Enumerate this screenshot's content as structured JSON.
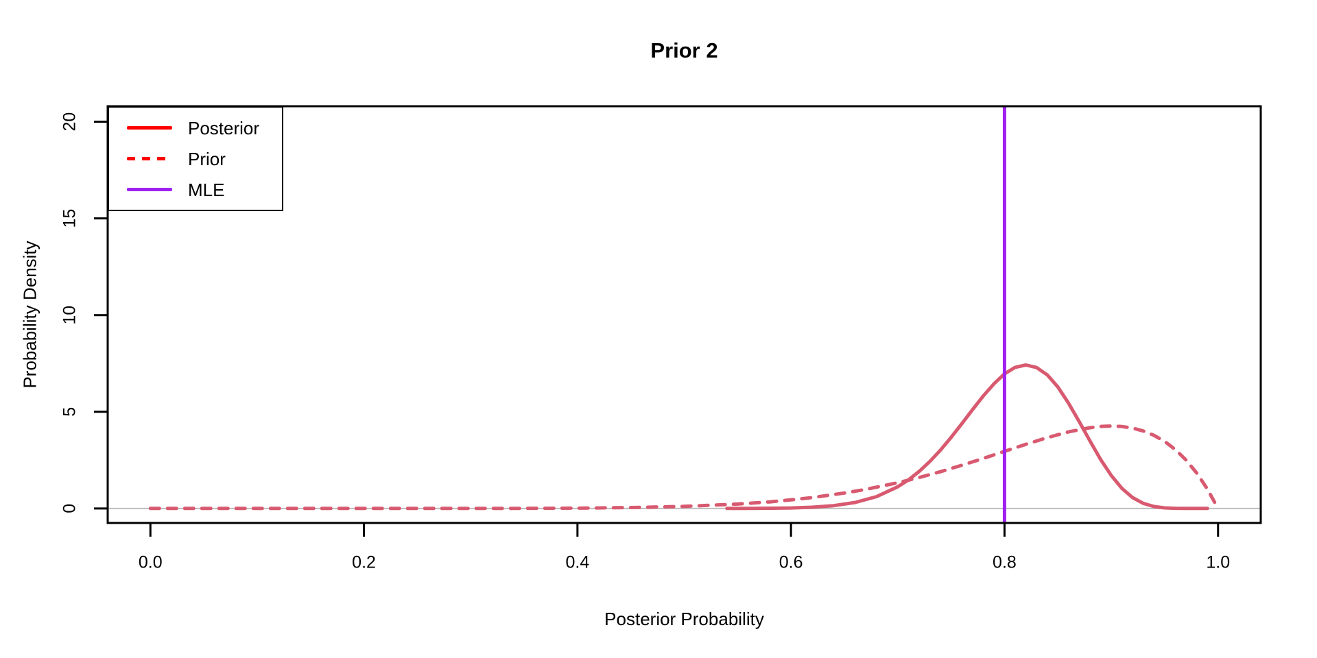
{
  "title": {
    "text": "Prior 2"
  },
  "axes": {
    "x": {
      "label": "Posterior Probability",
      "ticks": [
        {
          "value": 0.0,
          "label": "0.0"
        },
        {
          "value": 0.2,
          "label": "0.2"
        },
        {
          "value": 0.4,
          "label": "0.4"
        },
        {
          "value": 0.6,
          "label": "0.6"
        },
        {
          "value": 0.8,
          "label": "0.8"
        },
        {
          "value": 1.0,
          "label": "1.0"
        }
      ]
    },
    "y": {
      "label": "Probability Density",
      "ticks": [
        {
          "value": 0,
          "label": "0"
        },
        {
          "value": 5,
          "label": "5"
        },
        {
          "value": 10,
          "label": "10"
        },
        {
          "value": 15,
          "label": "15"
        },
        {
          "value": 20,
          "label": "20"
        }
      ]
    }
  },
  "legend": {
    "items": [
      {
        "label": "Posterior",
        "color": "#FF0000",
        "line": "solid"
      },
      {
        "label": "Prior",
        "color": "#FF0000",
        "line": "dashed"
      },
      {
        "label": "MLE",
        "color": "#A021F0",
        "line": "solid"
      }
    ]
  },
  "colors": {
    "curve": "#D85A70",
    "mle_line": "#A021F0",
    "zero_line": "#BEBEBE",
    "axis": "#000000",
    "background": "#FFFFFF"
  },
  "chart_data": {
    "type": "line",
    "title": "Prior 2",
    "xlabel": "Posterior Probability",
    "ylabel": "Probability Density",
    "xlim": [
      -0.04,
      1.04
    ],
    "ylim": [
      -0.75,
      20.8
    ],
    "x_ticks": [
      0,
      0.2,
      0.4,
      0.6,
      0.8,
      1.0
    ],
    "y_ticks": [
      0,
      5,
      10,
      15,
      20
    ],
    "grid": false,
    "legend_position": "topleft",
    "zero_line": {
      "y": 0,
      "color": "#BEBEBE"
    },
    "series": [
      {
        "name": "Posterior",
        "type": "line",
        "style": "solid",
        "color": "#D85A70",
        "points": [
          [
            0.54,
            0.002
          ],
          [
            0.56,
            0.005
          ],
          [
            0.58,
            0.011
          ],
          [
            0.6,
            0.027
          ],
          [
            0.62,
            0.065
          ],
          [
            0.64,
            0.147
          ],
          [
            0.66,
            0.31
          ],
          [
            0.68,
            0.61
          ],
          [
            0.7,
            1.12
          ],
          [
            0.71,
            1.478
          ],
          [
            0.72,
            1.913
          ],
          [
            0.73,
            2.428
          ],
          [
            0.74,
            3.019
          ],
          [
            0.75,
            3.677
          ],
          [
            0.76,
            4.384
          ],
          [
            0.77,
            5.109
          ],
          [
            0.78,
            5.812
          ],
          [
            0.79,
            6.44
          ],
          [
            0.8,
            6.959
          ],
          [
            0.81,
            7.3
          ],
          [
            0.82,
            7.42
          ],
          [
            0.83,
            7.29
          ],
          [
            0.84,
            6.91
          ],
          [
            0.85,
            6.28
          ],
          [
            0.86,
            5.447
          ],
          [
            0.87,
            4.49
          ],
          [
            0.88,
            3.494
          ],
          [
            0.89,
            2.537
          ],
          [
            0.9,
            1.701
          ],
          [
            0.91,
            1.036
          ],
          [
            0.92,
            0.562
          ],
          [
            0.93,
            0.264
          ],
          [
            0.94,
            0.102
          ],
          [
            0.95,
            0.031
          ],
          [
            0.96,
            0.01
          ],
          [
            0.97,
            0.004
          ],
          [
            0.98,
            0.001
          ],
          [
            0.99,
            0.001
          ]
        ]
      },
      {
        "name": "Prior",
        "type": "line",
        "style": "dashed",
        "color": "#D85A70",
        "points": [
          [
            0.0,
            0.001
          ],
          [
            0.05,
            0.001
          ],
          [
            0.1,
            0.001
          ],
          [
            0.15,
            0.001
          ],
          [
            0.2,
            0.001
          ],
          [
            0.25,
            0.001
          ],
          [
            0.3,
            0.002
          ],
          [
            0.35,
            0.006
          ],
          [
            0.4,
            0.017
          ],
          [
            0.45,
            0.046
          ],
          [
            0.5,
            0.107
          ],
          [
            0.55,
            0.228
          ],
          [
            0.58,
            0.343
          ],
          [
            0.6,
            0.443
          ],
          [
            0.62,
            0.565
          ],
          [
            0.65,
            0.798
          ],
          [
            0.67,
            0.987
          ],
          [
            0.7,
            1.332
          ],
          [
            0.72,
            1.601
          ],
          [
            0.74,
            1.902
          ],
          [
            0.76,
            2.234
          ],
          [
            0.78,
            2.587
          ],
          [
            0.8,
            2.953
          ],
          [
            0.82,
            3.318
          ],
          [
            0.84,
            3.664
          ],
          [
            0.86,
            3.962
          ],
          [
            0.88,
            4.178
          ],
          [
            0.89,
            4.24
          ],
          [
            0.9,
            4.264
          ],
          [
            0.91,
            4.236
          ],
          [
            0.92,
            4.155
          ],
          [
            0.93,
            4.007
          ],
          [
            0.94,
            3.781
          ],
          [
            0.95,
            3.467
          ],
          [
            0.96,
            3.047
          ],
          [
            0.97,
            2.509
          ],
          [
            0.98,
            1.834
          ],
          [
            0.99,
            1.005
          ],
          [
            1.0,
            0.001
          ]
        ]
      },
      {
        "name": "MLE",
        "type": "vline",
        "x": 0.8,
        "color": "#A021F0"
      }
    ]
  }
}
